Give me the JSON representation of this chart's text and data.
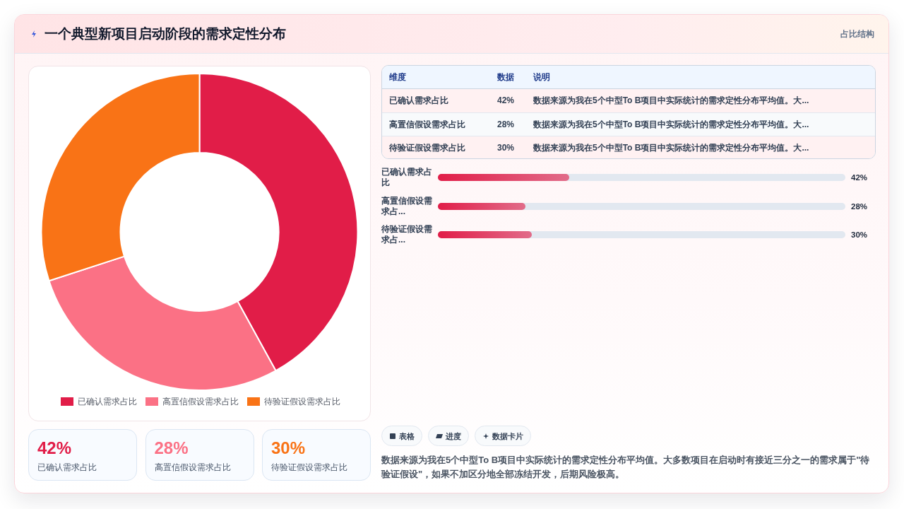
{
  "chart_data": [
    {
      "type": "donut",
      "title": "一个典型新项目启动阶段的需求定性分布",
      "categories": [
        "已确认需求占比",
        "高置信假设需求占比",
        "待验证假设需求占比"
      ],
      "values": [
        42,
        28,
        30
      ],
      "colors": [
        "#e11d48",
        "#fb7185",
        "#f97316"
      ],
      "legend": "bottom"
    },
    {
      "type": "other",
      "subtitle": "占比结构",
      "categories": [
        "已确认需求占比",
        "高置信假设需求占比",
        "待验证假设需求占比"
      ],
      "value_labels": [
        "42%",
        "28%",
        "30%"
      ],
      "annotations": [
        "维度",
        "数据",
        "说明",
        "数据来源为我在5个中型To B项目中实际统计的需求定性分布平均值。大...",
        "数据来源为我在5个中型To B项目中实际统计的需求定性分布平均值。大...",
        "数据来源为我在5个中型To B项目中实际统计的需求定性分布平均值。大..."
      ]
    },
    {
      "type": "bar",
      "orientation": "horizontal",
      "categories": [
        "已确认需求占比",
        "高置信假设需求占...",
        "待验证假设需求占..."
      ],
      "values": [
        42,
        28,
        30
      ],
      "color": "#e11d48",
      "xlim": [
        0,
        130
      ],
      "value_labels": [
        "42%",
        "28%",
        "30%"
      ]
    },
    {
      "type": "other",
      "categories": [
        "已确认需求占比",
        "高置信假设需求占比",
        "待验证假设需求占比"
      ],
      "value_labels": [
        "42%",
        "28%",
        "30%"
      ]
    },
    {
      "type": "other",
      "categories": [
        "表格",
        "进度",
        "数据卡片"
      ],
      "annotations": [
        "数据来源为我在5个中型To B项目中实际统计的需求定性分布平均值。大多数项目在启动时有接近三分之一的需求属于\"待验证假设\"，如果不加区分地全部冻结开发，后期风险极高。"
      ]
    }
  ]
}
